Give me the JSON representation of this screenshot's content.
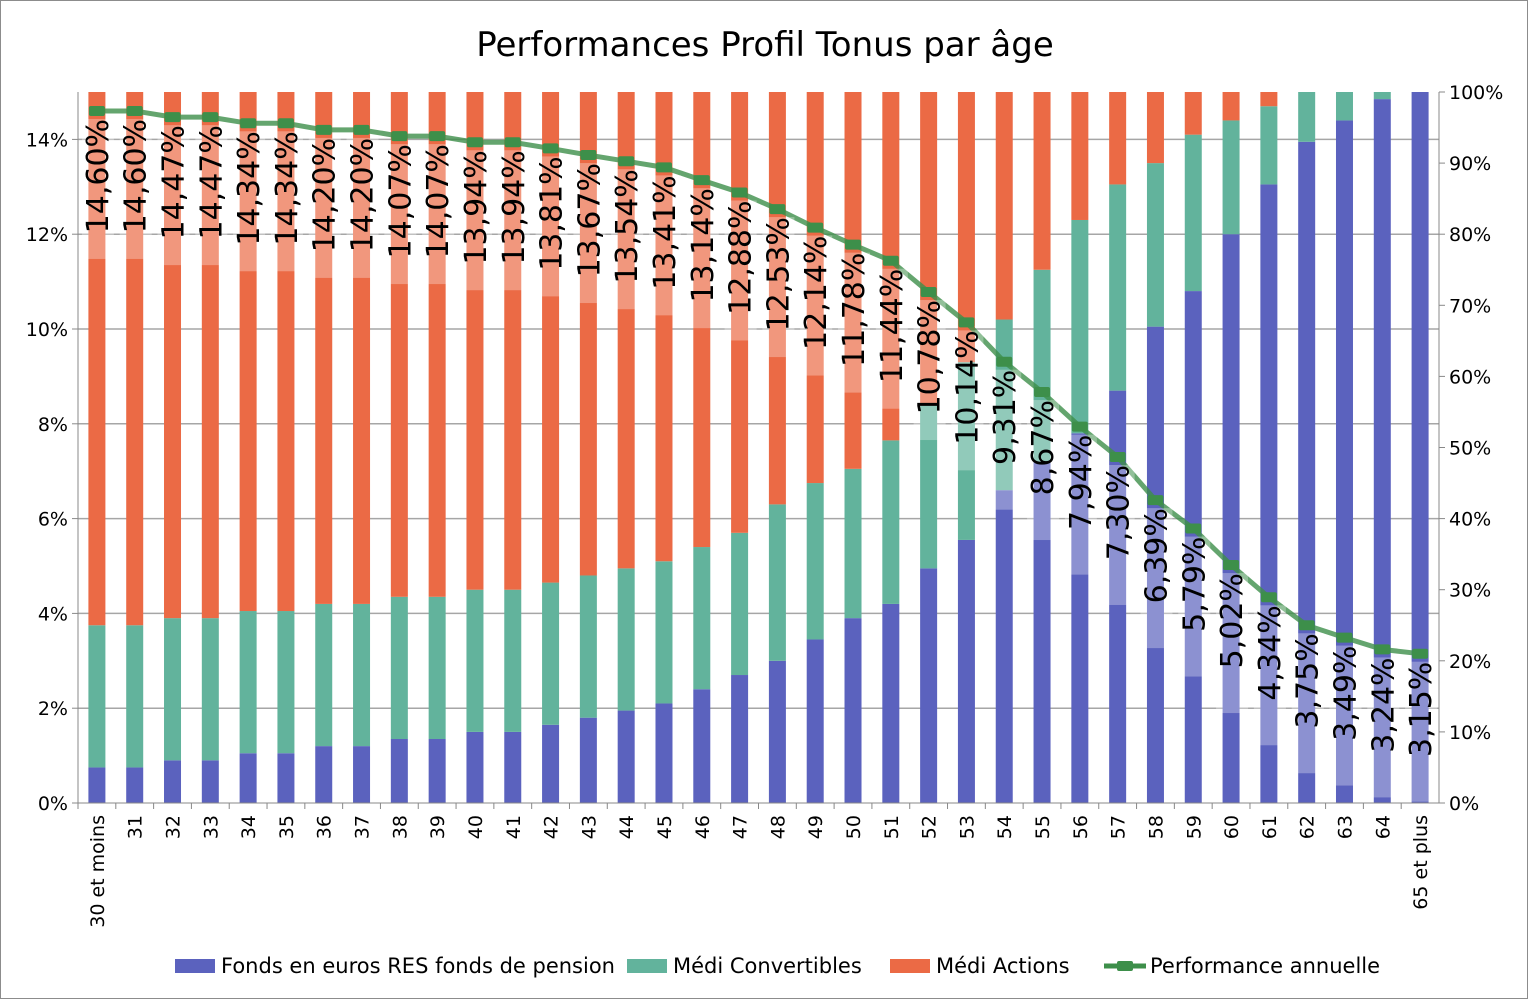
{
  "chart_data": {
    "type": "bar",
    "stacked": true,
    "title": "Performances Profil Tonus par âge",
    "categories": [
      "30 et moins",
      "31",
      "32",
      "33",
      "34",
      "35",
      "36",
      "37",
      "38",
      "39",
      "40",
      "41",
      "42",
      "43",
      "44",
      "45",
      "46",
      "47",
      "48",
      "49",
      "50",
      "51",
      "52",
      "53",
      "54",
      "55",
      "56",
      "57",
      "58",
      "59",
      "60",
      "61",
      "62",
      "63",
      "64",
      "65 et plus"
    ],
    "left_axis": {
      "min": 0,
      "max": 15,
      "ticks": [
        "0%",
        "2%",
        "4%",
        "6%",
        "8%",
        "10%",
        "12%",
        "14%"
      ],
      "tick_values": [
        0,
        2,
        4,
        6,
        8,
        10,
        12,
        14
      ]
    },
    "right_axis": {
      "min": 0,
      "max": 100,
      "ticks": [
        "0%",
        "10%",
        "20%",
        "30%",
        "40%",
        "50%",
        "60%",
        "70%",
        "80%",
        "90%",
        "100%"
      ],
      "tick_values": [
        0,
        10,
        20,
        30,
        40,
        50,
        60,
        70,
        80,
        90,
        100
      ]
    },
    "grid": true,
    "legend_position": "bottom",
    "series": [
      {
        "name": "Fonds en euros RES fonds de pension",
        "type": "bar",
        "axis": "right",
        "color": "#5b62be",
        "values": [
          5,
          5,
          6,
          6,
          7,
          7,
          8,
          8,
          9,
          9,
          10,
          10,
          11,
          12,
          13,
          14,
          16,
          18,
          20,
          23,
          26,
          28,
          33,
          37,
          44,
          48,
          52,
          58,
          67,
          72,
          80,
          87,
          93,
          96,
          99,
          100
        ]
      },
      {
        "name": "Médi Convertibles",
        "type": "bar",
        "axis": "right",
        "color": "#62b39c",
        "values": [
          20,
          20,
          20,
          20,
          20,
          20,
          20,
          20,
          20,
          20,
          20,
          20,
          20,
          20,
          20,
          20,
          20,
          20,
          22,
          22,
          21,
          23,
          23,
          25,
          24,
          27,
          30,
          29,
          23,
          22,
          16,
          11,
          7,
          4,
          1,
          0
        ]
      },
      {
        "name": "Médi Actions",
        "type": "bar",
        "axis": "right",
        "color": "#eb6a45",
        "values": [
          75,
          75,
          74,
          74,
          73,
          73,
          72,
          72,
          71,
          71,
          70,
          70,
          69,
          68,
          67,
          66,
          64,
          62,
          58,
          55,
          53,
          49,
          44,
          38,
          32,
          25,
          18,
          13,
          10,
          6,
          4,
          2,
          0,
          0,
          0,
          0
        ]
      },
      {
        "name": "Performance annuelle",
        "type": "line",
        "axis": "left",
        "color": "#3d8f4a",
        "values": [
          14.6,
          14.6,
          14.47,
          14.47,
          14.34,
          14.34,
          14.2,
          14.2,
          14.07,
          14.07,
          13.94,
          13.94,
          13.81,
          13.67,
          13.54,
          13.41,
          13.14,
          12.88,
          12.53,
          12.14,
          11.78,
          11.44,
          10.78,
          10.14,
          9.31,
          8.67,
          7.94,
          7.3,
          6.39,
          5.79,
          5.02,
          4.34,
          3.75,
          3.49,
          3.24,
          3.15
        ],
        "labels": [
          "14,60%",
          "14,60%",
          "14,47%",
          "14,47%",
          "14,34%",
          "14,34%",
          "14,20%",
          "14,20%",
          "14,07%",
          "14,07%",
          "13,94%",
          "13,94%",
          "13,81%",
          "13,67%",
          "13,54%",
          "13,41%",
          "13,14%",
          "12,88%",
          "12,53%",
          "12,14%",
          "11,78%",
          "11,44%",
          "10,78%",
          "10,14%",
          "9,31%",
          "8,67%",
          "7,94%",
          "7,30%",
          "6,39%",
          "5,79%",
          "5,02%",
          "4,34%",
          "3,75%",
          "3,49%",
          "3,24%",
          "3,15%"
        ]
      }
    ]
  }
}
